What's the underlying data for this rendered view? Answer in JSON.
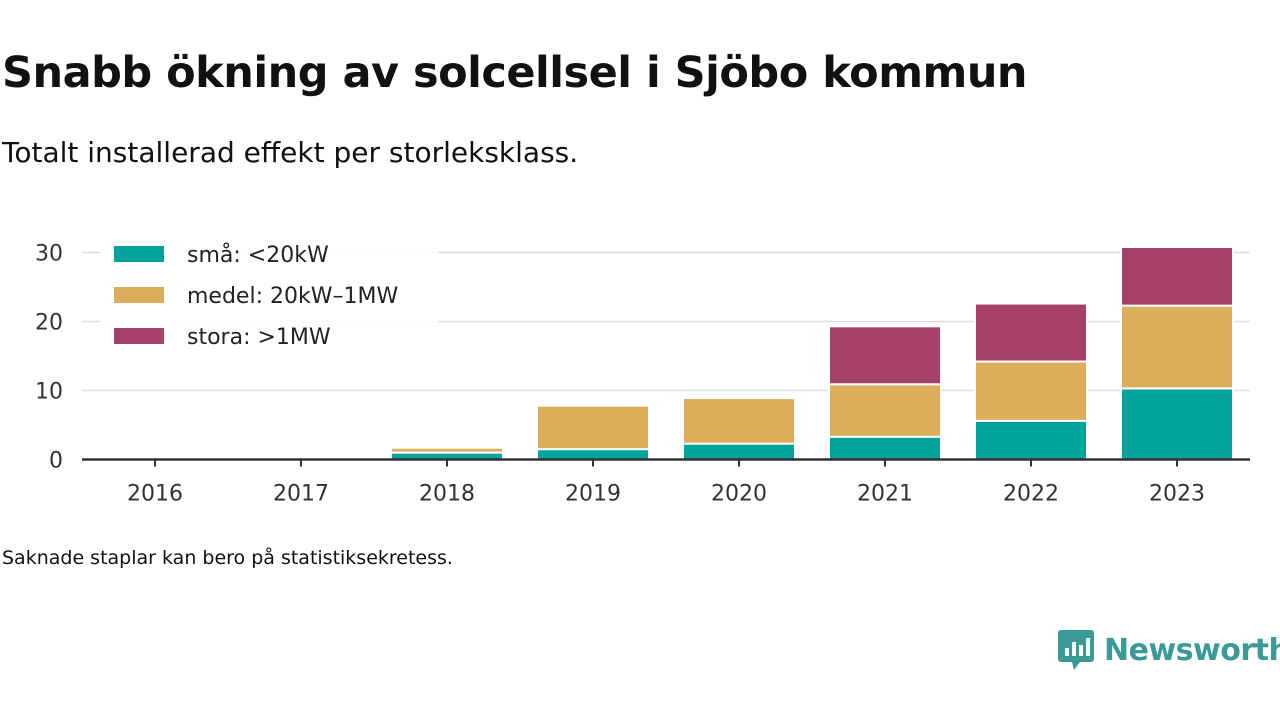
{
  "title": "Snabb ökning av solcellsel i Sjöbo kommun",
  "subtitle": "Totalt installerad effekt per storleksklass.",
  "footnote": "Saknade staplar kan bero på statistiksekretess.",
  "brand": {
    "name": "Newsworthy",
    "icon": "newsworthy-logo-icon",
    "color": "#3a9a95"
  },
  "chart_data": {
    "type": "bar",
    "stacked": true,
    "title": "",
    "xlabel": "",
    "ylabel": "",
    "categories": [
      "2016",
      "2017",
      "2018",
      "2019",
      "2020",
      "2021",
      "2022",
      "2023"
    ],
    "series": [
      {
        "name": "små: <20kW",
        "color": "#00a39a",
        "values": [
          0,
          0,
          1.0,
          1.5,
          2.3,
          3.3,
          5.6,
          10.3
        ]
      },
      {
        "name": "medel: 20kW–1MW",
        "color": "#dcad5a",
        "values": [
          0,
          0,
          0.7,
          6.3,
          6.6,
          7.6,
          8.6,
          12.0
        ]
      },
      {
        "name": "stora: >1MW",
        "color": "#a54168",
        "values": [
          0,
          0,
          0,
          0,
          0,
          8.4,
          8.4,
          8.5
        ]
      }
    ],
    "ylim": [
      0,
      32
    ],
    "yticks": [
      0,
      10,
      20,
      30
    ],
    "grid": true,
    "legend": "top-left"
  }
}
